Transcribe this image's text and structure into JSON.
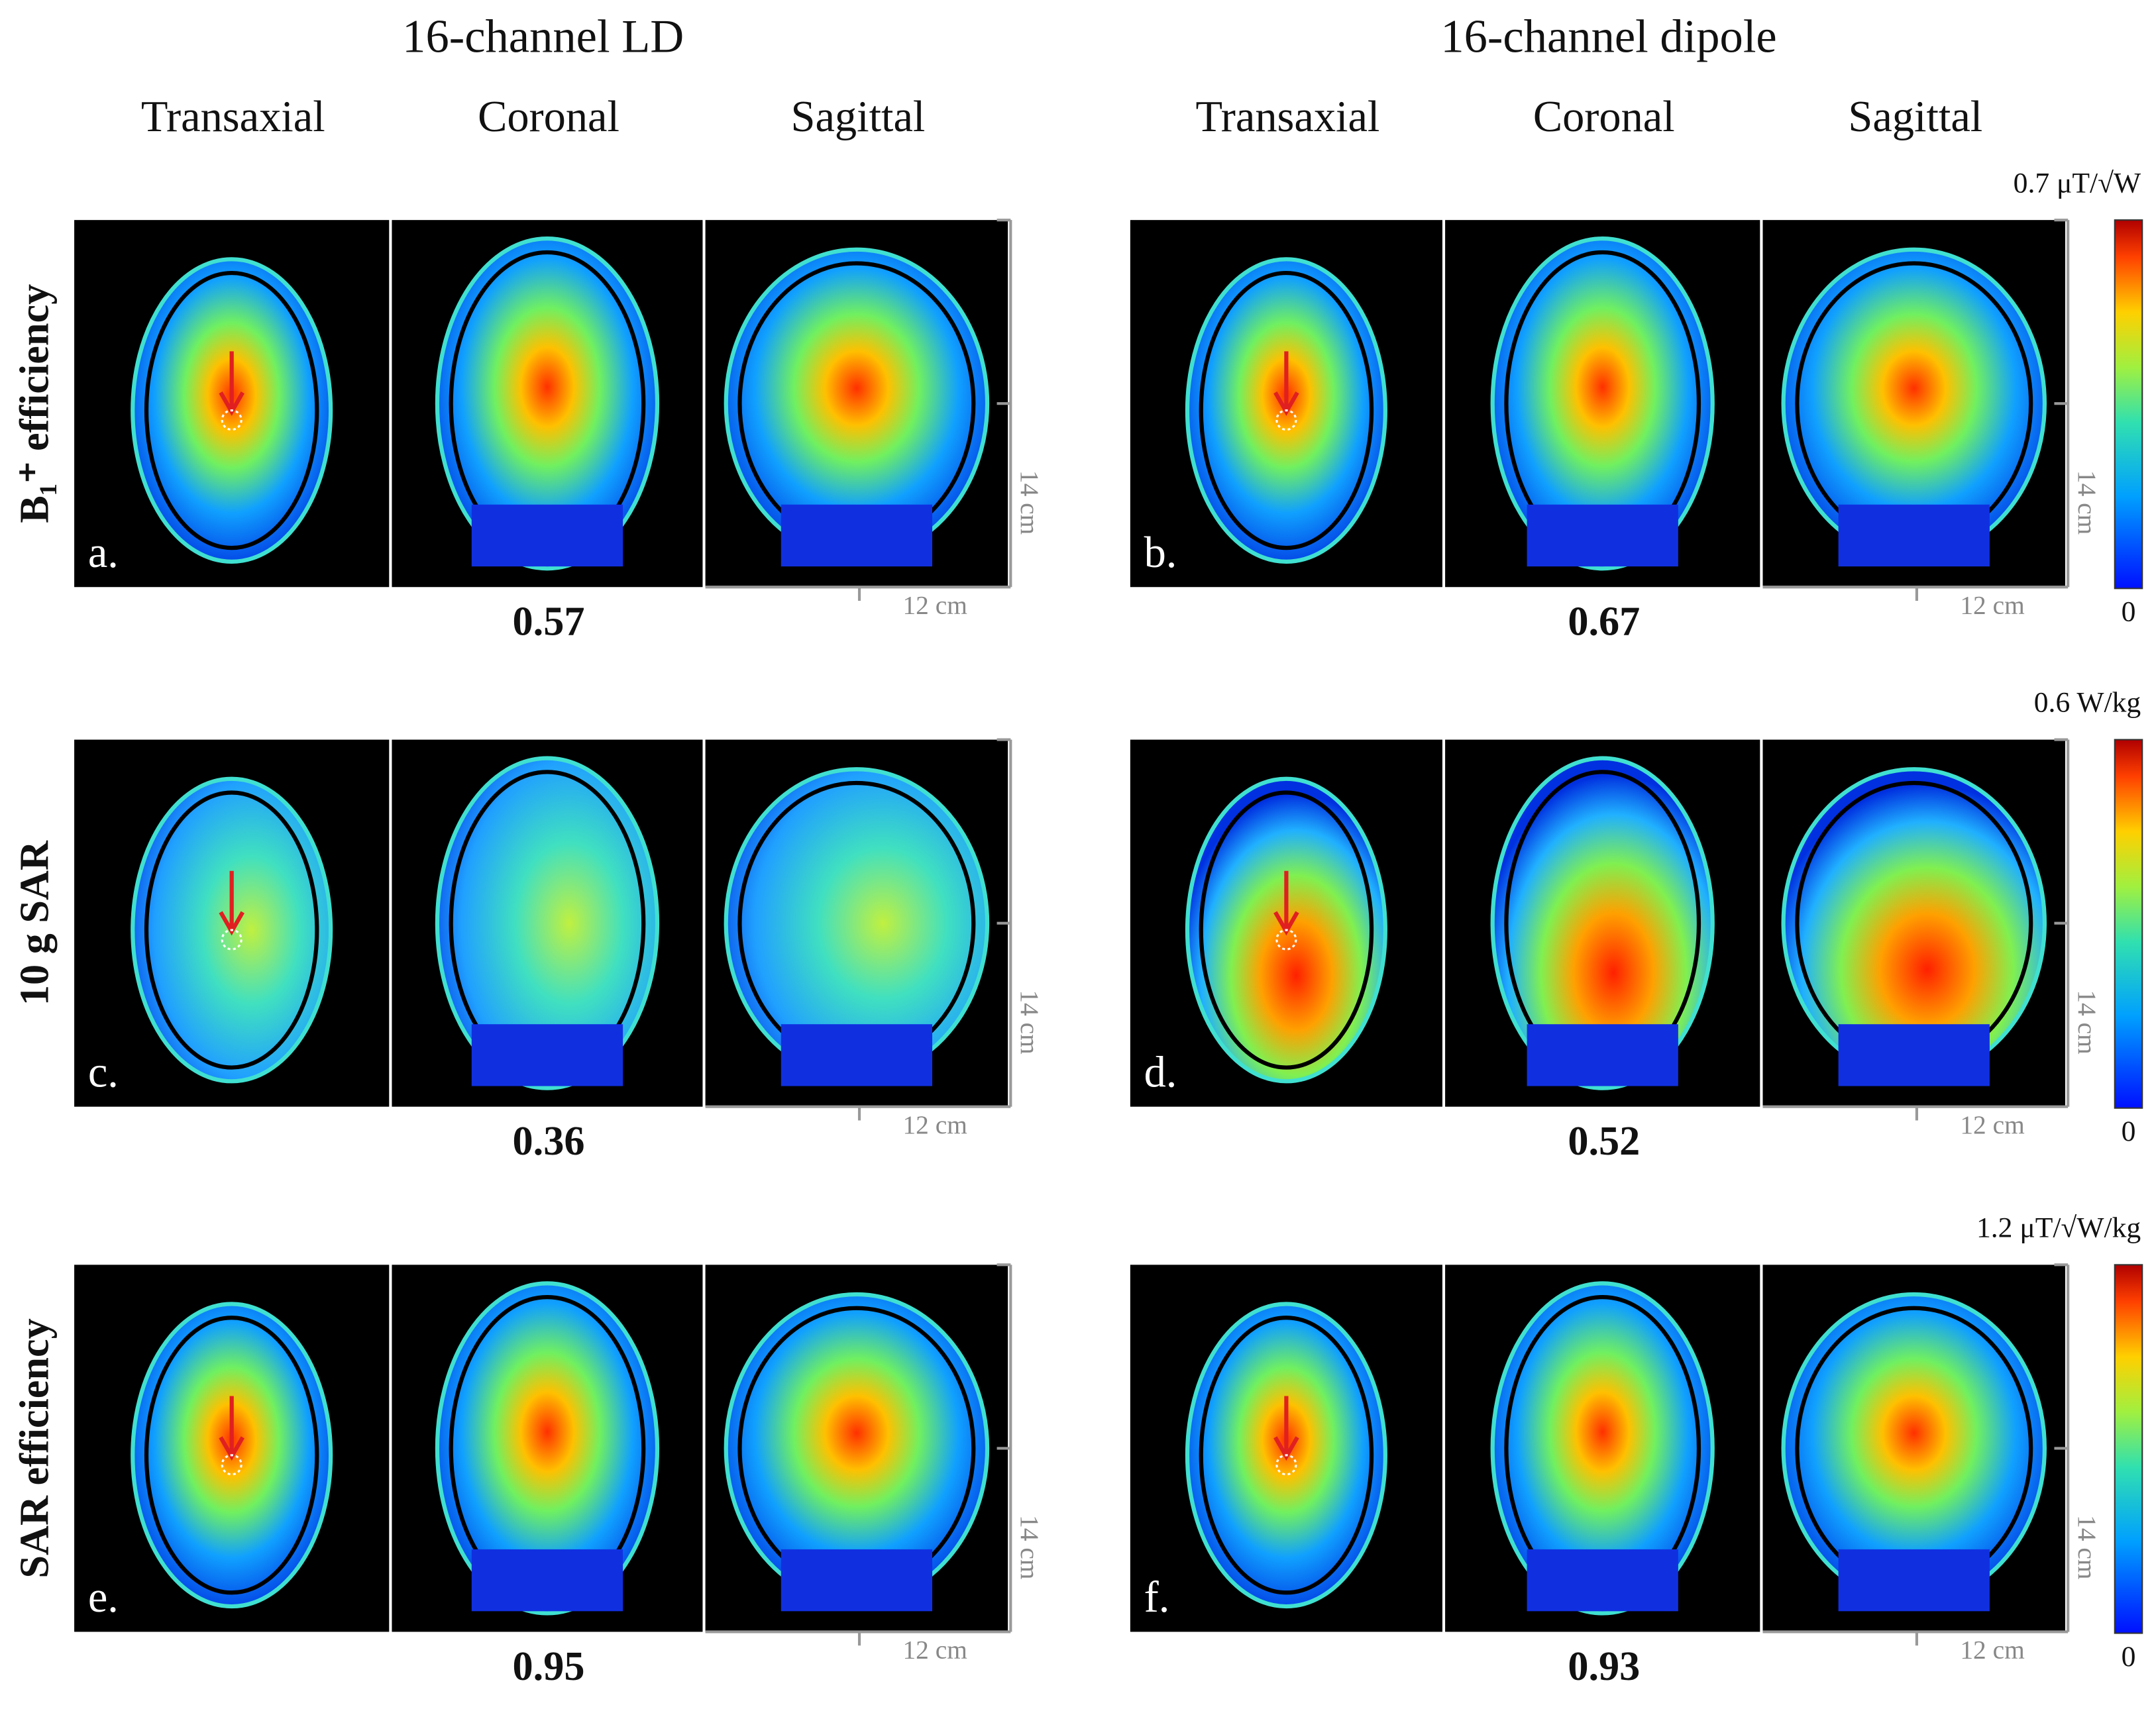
{
  "header": {
    "groups": [
      "16-channel LD",
      "16-channel dipole"
    ],
    "views": [
      "Transaxial",
      "Coronal",
      "Sagittal"
    ]
  },
  "rows": [
    {
      "label": "B₁⁺ efficiency",
      "panels": [
        {
          "letter": "a.",
          "value": 0.57
        },
        {
          "letter": "b.",
          "value": 0.67
        }
      ],
      "colorbar": {
        "max": "0.7 μT/√W",
        "min": "0"
      }
    },
    {
      "label": "10 g SAR",
      "panels": [
        {
          "letter": "c.",
          "value": 0.36
        },
        {
          "letter": "d.",
          "value": 0.52
        }
      ],
      "colorbar": {
        "max": "0.6 W/kg",
        "min": "0"
      }
    },
    {
      "label": "SAR efficiency",
      "panels": [
        {
          "letter": "e.",
          "value": 0.95
        },
        {
          "letter": "f.",
          "value": 0.93
        }
      ],
      "colorbar": {
        "max": "1.2 μT/√W/kg",
        "min": "0"
      }
    }
  ],
  "scale": {
    "height": "14 cm",
    "width": "12 cm"
  }
}
